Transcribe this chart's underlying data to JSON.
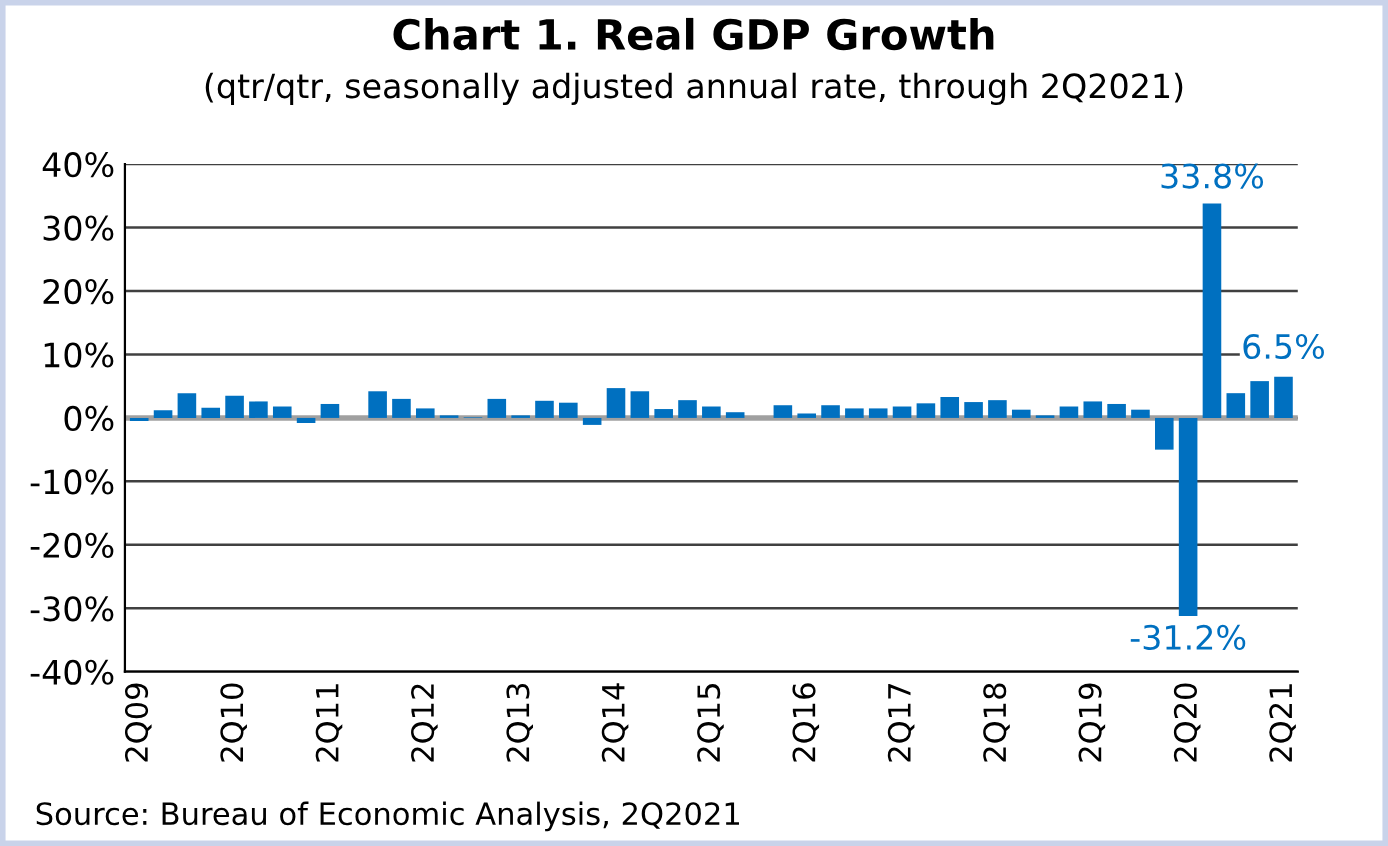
{
  "chart_data": {
    "type": "bar",
    "title": "Chart 1. Real GDP Growth",
    "subtitle": "(qtr/qtr, seasonally adjusted annual rate, through 2Q2021)",
    "categories": [
      "2Q09",
      null,
      null,
      null,
      "2Q10",
      null,
      null,
      null,
      "2Q11",
      null,
      null,
      null,
      "2Q12",
      null,
      null,
      null,
      "2Q13",
      null,
      null,
      null,
      "2Q14",
      null,
      null,
      null,
      "2Q15",
      null,
      null,
      null,
      "2Q16",
      null,
      null,
      null,
      "2Q17",
      null,
      null,
      null,
      "2Q18",
      null,
      null,
      null,
      "2Q19",
      null,
      null,
      null,
      "2Q20",
      null,
      null,
      null,
      "2Q21"
    ],
    "values": [
      -0.5,
      1.2,
      3.9,
      1.6,
      3.5,
      2.6,
      1.8,
      -0.8,
      2.2,
      0.0,
      4.2,
      3.0,
      1.5,
      0.4,
      0.1,
      3.0,
      0.4,
      2.7,
      2.4,
      -1.1,
      4.7,
      4.2,
      1.4,
      2.8,
      1.8,
      0.9,
      0.0,
      2.0,
      0.7,
      2.0,
      1.5,
      1.5,
      1.8,
      2.3,
      3.3,
      2.5,
      2.8,
      1.3,
      0.4,
      1.8,
      2.6,
      2.2,
      1.3,
      -5.0,
      -31.2,
      33.8,
      3.9,
      5.8,
      6.5
    ],
    "value_labels": [
      null,
      null,
      null,
      null,
      null,
      null,
      null,
      null,
      null,
      null,
      null,
      null,
      null,
      null,
      null,
      null,
      null,
      null,
      null,
      null,
      null,
      null,
      null,
      null,
      null,
      null,
      null,
      null,
      null,
      null,
      null,
      null,
      null,
      null,
      null,
      null,
      null,
      null,
      null,
      null,
      null,
      null,
      null,
      null,
      "-31.2%",
      "33.8%",
      null,
      null,
      "6.5%"
    ],
    "color": "#0070c0",
    "ylim": [
      -40,
      40
    ],
    "yticks": [
      {
        "value": -40,
        "label": "-40%"
      },
      {
        "value": -30,
        "label": "-30%"
      },
      {
        "value": -20,
        "label": "-20%"
      },
      {
        "value": -10,
        "label": "-10%"
      },
      {
        "value": 0,
        "label": "0%"
      },
      {
        "value": 10,
        "label": "10%"
      },
      {
        "value": 20,
        "label": "20%"
      },
      {
        "value": 30,
        "label": "30%"
      },
      {
        "value": 40,
        "label": "40%"
      }
    ],
    "grid": "y",
    "annotations": [
      "Source: Bureau of Economic Analysis, 2Q2021"
    ]
  }
}
